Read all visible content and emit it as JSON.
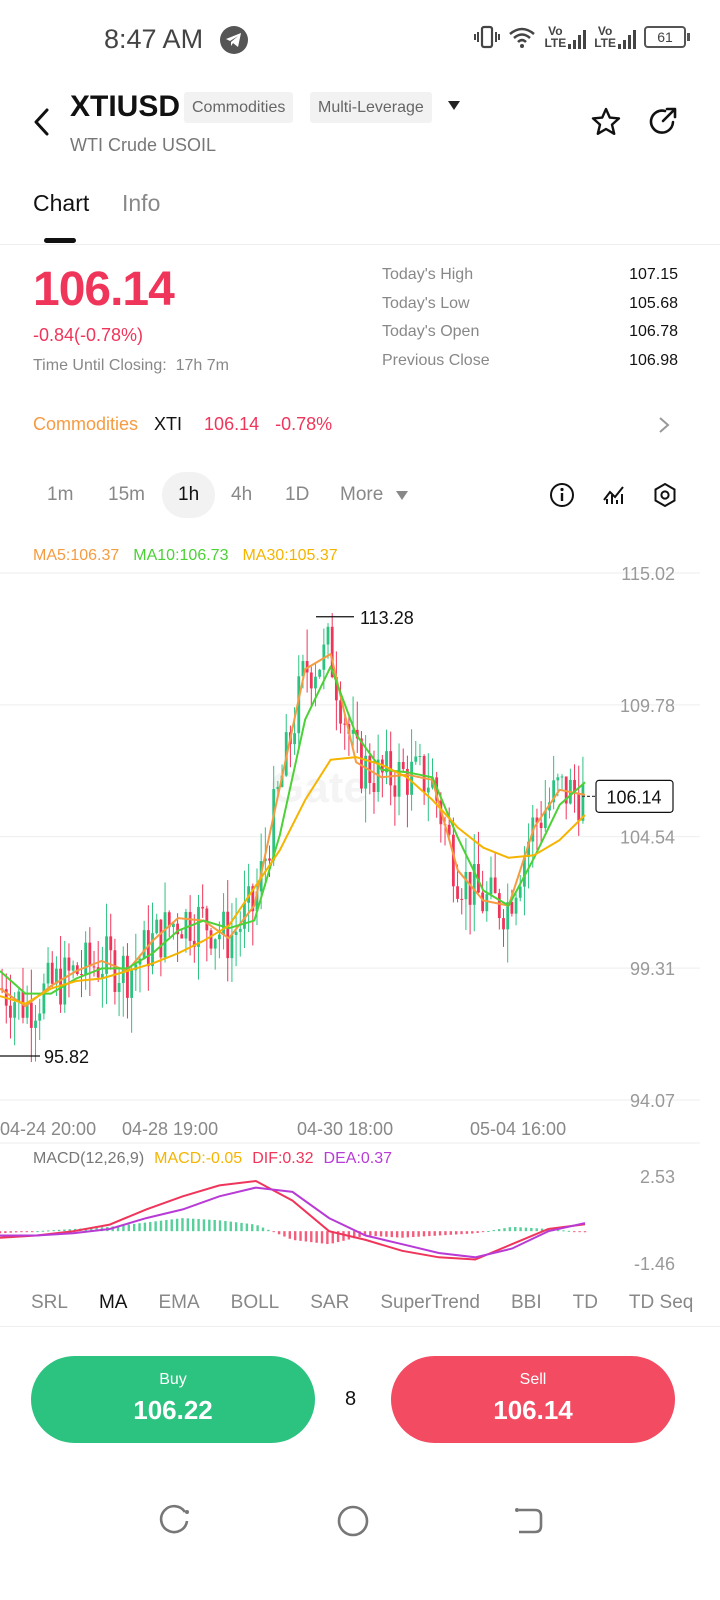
{
  "status": {
    "time": "8:47 AM",
    "volte1": "Vo\nLTE",
    "volte_a": "Vo",
    "volte_b": "LTE",
    "battery": "61"
  },
  "header": {
    "symbol": "XTIUSD",
    "tag_category": "Commodities",
    "tag_leverage": "Multi-Leverage",
    "subtitle": "WTI Crude USOIL"
  },
  "tabs": {
    "chart": "Chart",
    "info": "Info"
  },
  "quote": {
    "price": "106.14",
    "change": "-0.84(-0.78%)",
    "closing_label": "Time Until Closing:",
    "closing_value": "17h 7m",
    "stats": [
      {
        "label": "Today's High",
        "value": "107.15"
      },
      {
        "label": "Today's Low",
        "value": "105.68"
      },
      {
        "label": "Today's Open",
        "value": "106.78"
      },
      {
        "label": "Previous Close",
        "value": "106.98"
      }
    ]
  },
  "market_row": {
    "category": "Commodities",
    "symbol": "XTI",
    "price": "106.14",
    "change": "-0.78%"
  },
  "timeframes": [
    "1m",
    "15m",
    "1h",
    "4h",
    "1D",
    "More"
  ],
  "active_timeframe": "1h",
  "ma_legend": {
    "ma5": "MA5:106.37",
    "ma10": "MA10:106.73",
    "ma30": "MA30:105.37"
  },
  "macd_legend": {
    "name": "MACD(12,26,9)",
    "macd": "MACD:-0.05",
    "dif": "DIF:0.32",
    "dea": "DEA:0.37"
  },
  "indicators": [
    "SRL",
    "MA",
    "EMA",
    "BOLL",
    "SAR",
    "SuperTrend",
    "BBI",
    "TD",
    "TD Seq"
  ],
  "active_indicator": "MA",
  "trade": {
    "buy_label": "Buy",
    "buy_price": "106.22",
    "sell_label": "Sell",
    "sell_price": "106.14",
    "leverage": "8"
  },
  "colors": {
    "up": "#2cc381",
    "down": "#f0355b",
    "ma5": "#f59b42",
    "ma10": "#4cd137",
    "ma30": "#f5b400",
    "dif": "#f0355b",
    "dea": "#b83bd6",
    "accent_orange": "#f59b42"
  },
  "chart_data": {
    "type": "candlestick",
    "y_ticks": [
      "115.02",
      "109.78",
      "104.54",
      "99.31",
      "94.07"
    ],
    "ylim": [
      94.07,
      115.02
    ],
    "x_ticks": [
      "04-24 20:00",
      "04-28 19:00",
      "04-30 18:00",
      "05-04 16:00"
    ],
    "max_label": "113.28",
    "min_label": "95.82",
    "current_price": "106.14",
    "macd_ticks": [
      "2.53",
      "-1.46"
    ],
    "macd_ylim": [
      -1.46,
      2.53
    ],
    "series": [
      {
        "name": "MA5",
        "approx_values": [
          98.5,
          97.8,
          98.6,
          99.2,
          99.6,
          99.2,
          100.4,
          101.3,
          101.2,
          100.5,
          101.8,
          106.5,
          111.2,
          111.8,
          107.5,
          106.9,
          107.0,
          106.8,
          103.2,
          102.0,
          101.8,
          104.9,
          106.4,
          106.2
        ]
      },
      {
        "name": "MA10",
        "approx_values": [
          99.2,
          98.3,
          98.3,
          98.9,
          99.3,
          99.3,
          99.9,
          100.8,
          101.2,
          100.9,
          101.2,
          104.6,
          109.2,
          111.3,
          108.6,
          107.2,
          107.1,
          106.9,
          104.5,
          102.4,
          101.8,
          103.7,
          105.8,
          106.7
        ]
      },
      {
        "name": "MA30",
        "approx_values": [
          98.2,
          97.9,
          98.5,
          98.8,
          98.9,
          99.2,
          99.5,
          99.9,
          100.4,
          101.0,
          102.5,
          104.0,
          106.0,
          107.6,
          107.7,
          107.4,
          106.9,
          106.0,
          104.9,
          104.1,
          103.7,
          103.8,
          104.4,
          105.4
        ]
      }
    ],
    "macd": {
      "dif_approx": [
        -0.3,
        -0.2,
        0.0,
        0.3,
        1.0,
        1.6,
        2.1,
        2.3,
        1.4,
        0.0,
        -0.4,
        -0.9,
        -1.2,
        -1.3,
        -0.6,
        0.1,
        0.32
      ],
      "dea_approx": [
        -0.2,
        -0.2,
        -0.1,
        0.1,
        0.6,
        1.0,
        1.6,
        2.0,
        1.8,
        0.6,
        -0.2,
        -0.6,
        -1.0,
        -1.2,
        -0.8,
        0.0,
        0.37
      ]
    }
  }
}
